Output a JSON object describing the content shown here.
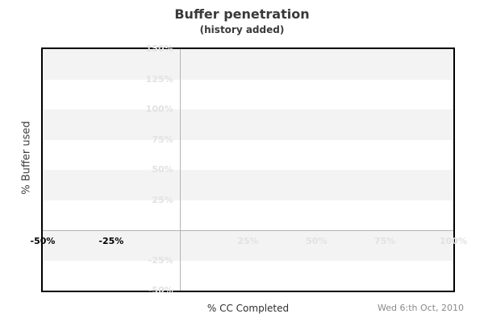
{
  "header": {
    "title": "Buffer penetration",
    "subtitle": "(history added)"
  },
  "footer": {
    "x_axis_title": "% CC Completed",
    "date_label": "Wed 6:th Oct, 2010"
  },
  "y_axis_title": "% Buffer used",
  "colors": {
    "band": "#f3f3f3",
    "plot_background": "#ffffff",
    "border": "#000000",
    "zero_line": "#b3b3b3",
    "tick_muted": "#e2e2e2",
    "tick_strong": "#000000",
    "title_text": "#3a3a3a",
    "date_text": "#8a8a8a"
  },
  "chart_data": {
    "type": "line",
    "title": "Buffer penetration",
    "subtitle": "(history added)",
    "xlabel": "% CC Completed",
    "ylabel": "% Buffer used",
    "xlim": [
      -50,
      100
    ],
    "ylim": [
      -50,
      150
    ],
    "series": [],
    "annotation_date": "Wed 6:th Oct, 2010",
    "grid": "alternating horizontal bands every 25%, gray zero-axis lines, no data plotted",
    "legend": "none",
    "zero_lines": {
      "x": 0,
      "y": 0
    },
    "bands": [
      {
        "from": 150,
        "to": 125
      },
      {
        "from": 100,
        "to": 75
      },
      {
        "from": 50,
        "to": 25
      },
      {
        "from": 0,
        "to": -25
      }
    ],
    "y_ticks": [
      {
        "value": 150,
        "label": "150%",
        "emphasized": false
      },
      {
        "value": 125,
        "label": "125%",
        "emphasized": false
      },
      {
        "value": 100,
        "label": "100%",
        "emphasized": false
      },
      {
        "value": 75,
        "label": "75%",
        "emphasized": false
      },
      {
        "value": 50,
        "label": "50%",
        "emphasized": false
      },
      {
        "value": 25,
        "label": "25%",
        "emphasized": false
      },
      {
        "value": -25,
        "label": "-25%",
        "emphasized": false
      },
      {
        "value": -50,
        "label": "-50%",
        "emphasized": false
      }
    ],
    "x_ticks": [
      {
        "value": -50,
        "label": "-50%",
        "emphasized": true
      },
      {
        "value": -25,
        "label": "-25%",
        "emphasized": true
      },
      {
        "value": 25,
        "label": "25%",
        "emphasized": false
      },
      {
        "value": 50,
        "label": "50%",
        "emphasized": false
      },
      {
        "value": 75,
        "label": "75%",
        "emphasized": false
      },
      {
        "value": 100,
        "label": "100%",
        "emphasized": false
      }
    ]
  }
}
